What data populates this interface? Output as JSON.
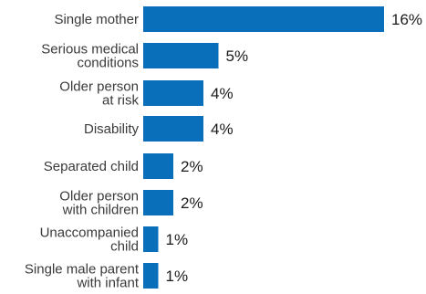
{
  "chart_data": {
    "type": "bar",
    "orientation": "horizontal",
    "categories": [
      [
        "Single mother"
      ],
      [
        "Serious medical",
        "conditions"
      ],
      [
        "Older person",
        "at risk"
      ],
      [
        "Disability"
      ],
      [
        "Separated child"
      ],
      [
        "Older person",
        "with children"
      ],
      [
        "Unaccompanied",
        "child"
      ],
      [
        "Single male parent",
        "with infant"
      ]
    ],
    "values": [
      16,
      5,
      4,
      4,
      2,
      2,
      1,
      1
    ],
    "value_labels": [
      "16%",
      "5%",
      "4%",
      "4%",
      "2%",
      "2%",
      "1%",
      "1%"
    ],
    "unit": "%",
    "xlim": [
      0,
      16
    ],
    "bar_color": "#0a6fba",
    "grid": false,
    "legend": "none"
  }
}
